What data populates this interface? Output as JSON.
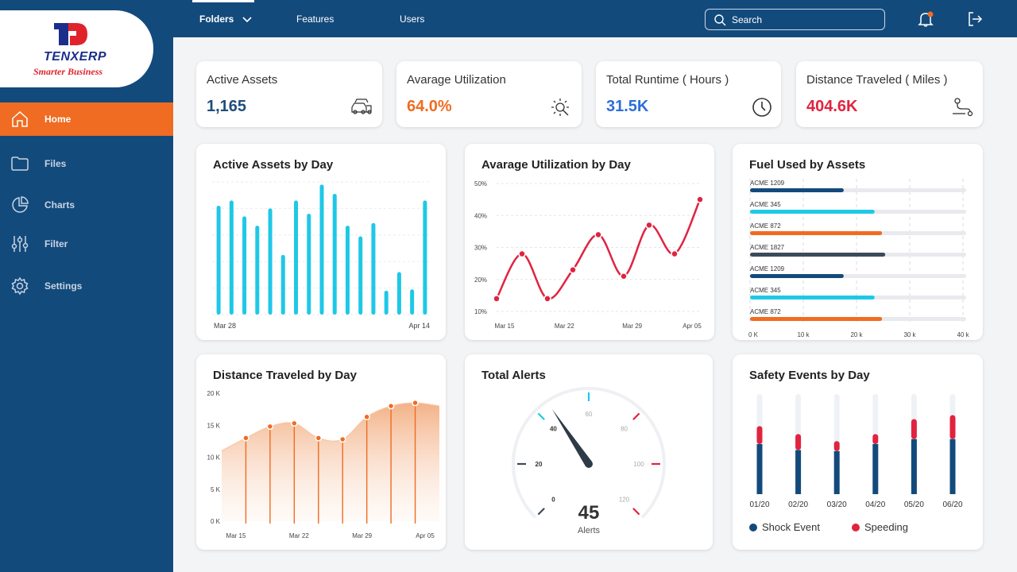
{
  "brand": {
    "name": "TENXERP",
    "tagline": "Smarter Business"
  },
  "sidebar": {
    "items": [
      {
        "label": "Home",
        "icon": "home-icon",
        "active": true
      },
      {
        "label": "Files",
        "icon": "folder-icon",
        "active": false
      },
      {
        "label": "Charts",
        "icon": "pie-chart-icon",
        "active": false
      },
      {
        "label": "Filter",
        "icon": "sliders-icon",
        "active": false
      },
      {
        "label": "Settings",
        "icon": "gear-icon",
        "active": false
      }
    ]
  },
  "topbar": {
    "tabs": [
      {
        "label": "Folders",
        "active": true,
        "has_dropdown": true
      },
      {
        "label": "Features",
        "active": false
      },
      {
        "label": "Users",
        "active": false
      }
    ],
    "search": {
      "placeholder": "Search",
      "value": ""
    },
    "notification_icon": "bell-icon",
    "logout_icon": "logout-icon"
  },
  "kpis": [
    {
      "label": "Active Assets",
      "value": "1,165",
      "color": "#1f4e7a",
      "icon": "cars-icon"
    },
    {
      "label": "Avarage Utilization",
      "value": "64.0%",
      "color": "#ef6c22",
      "icon": "wrench-gear-icon"
    },
    {
      "label": "Total Runtime ( Hours )",
      "value": "31.5K",
      "color": "#2d6fd6",
      "icon": "clock-icon"
    },
    {
      "label": "Distance Traveled ( Miles )",
      "value": "404.6K",
      "color": "#e0233f",
      "icon": "route-icon"
    }
  ],
  "colors": {
    "cyan": "#1ec8e6",
    "red": "#e0233f",
    "orange": "#ef6c22",
    "navy": "#134a7c",
    "slate": "#3d4a5a",
    "peach": "#f2a97a"
  },
  "chart_data": [
    {
      "type": "bar",
      "title": "Active Assets by Day",
      "x_tick_labels": [
        "Mar 28",
        "Apr 14"
      ],
      "values": [
        82,
        86,
        74,
        67,
        80,
        45,
        86,
        76,
        98,
        91,
        67,
        59,
        69,
        18,
        32,
        19,
        86
      ],
      "ylim": [
        0,
        100
      ],
      "grid": true,
      "color": "#1ec8e6"
    },
    {
      "type": "line",
      "title": "Avarage Utilization by Day",
      "x_tick_labels": [
        "Mar 15",
        "Mar 22",
        "Mar 29",
        "Apr 05"
      ],
      "y_tick_labels": [
        "50%",
        "40%",
        "30%",
        "20%",
        "10%"
      ],
      "ylim": [
        10,
        50
      ],
      "values": [
        14,
        28,
        14,
        23,
        34,
        21,
        37,
        28,
        45
      ],
      "color": "#e0233f"
    },
    {
      "type": "bar",
      "orientation": "horizontal",
      "title": "Fuel Used by Assets",
      "categories": [
        "ACME 1209",
        "ACME 345",
        "ACME 872",
        "ACME 1827",
        "ACME 1209",
        "ACME 345",
        "ACME 872"
      ],
      "values": [
        17600,
        23400,
        24800,
        25400,
        17600,
        23400,
        24800
      ],
      "bar_colors": [
        "#134a7c",
        "#1ec8e6",
        "#ef6c22",
        "#3d4a5a",
        "#134a7c",
        "#1ec8e6",
        "#ef6c22"
      ],
      "x_tick_labels": [
        "0 K",
        "10 k",
        "20 k",
        "30 k",
        "40 k"
      ],
      "xlim": [
        0,
        40000
      ]
    },
    {
      "type": "area",
      "title": "Distance Traveled by Day",
      "x_tick_labels": [
        "Mar 15",
        "Mar 22",
        "Mar 29",
        "Apr 05"
      ],
      "y_tick_labels": [
        "20 K",
        "15 K",
        "10 K",
        "5 K",
        "0 K"
      ],
      "ylim": [
        0,
        20000
      ],
      "values": [
        11000,
        13000,
        14800,
        15300,
        13000,
        12800,
        16300,
        18000,
        18500,
        18000
      ],
      "marked_indices": [
        1,
        2,
        3,
        4,
        5,
        6,
        7,
        8
      ],
      "color": "#ef6c22"
    },
    {
      "type": "gauge",
      "title": "Total Alerts",
      "value": 45,
      "value_label": "Alerts",
      "scale_labels": [
        "0",
        "20",
        "40",
        "60",
        "80",
        "100",
        "120"
      ],
      "min": 0,
      "max": 120
    },
    {
      "type": "bar",
      "stacked": true,
      "title": "Safety Events by Day",
      "categories": [
        "01/20",
        "02/20",
        "03/20",
        "04/20",
        "05/20",
        "06/20"
      ],
      "ylim": [
        0,
        100
      ],
      "series": [
        {
          "name": "Shock Event",
          "values": [
            50,
            44,
            43,
            50,
            55,
            55
          ],
          "color": "#134a7c"
        },
        {
          "name": "Speeding",
          "values": [
            18,
            16,
            10,
            10,
            20,
            24
          ],
          "color": "#e0233f"
        }
      ]
    }
  ]
}
